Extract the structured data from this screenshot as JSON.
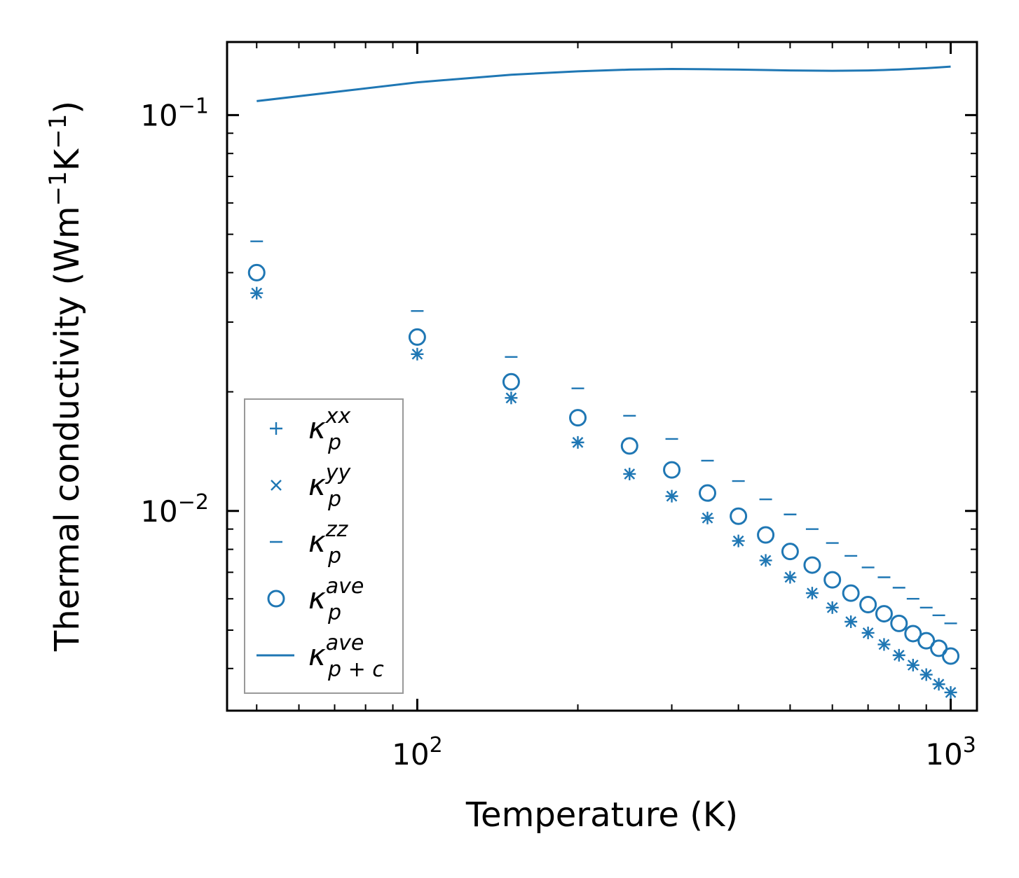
{
  "chart_data": {
    "type": "scatter",
    "xscale": "log",
    "yscale": "log",
    "xlabel": "Temperature (K)",
    "ylabel": "Thermal conductivity (Wm",
    "ylabel_sup1": "−1",
    "ylabel_mid": "K",
    "ylabel_sup2": "−1",
    "ylabel_end": ")",
    "xlim": [
      44,
      1120
    ],
    "ylim": [
      0.00313,
      0.153
    ],
    "x_ticks": [
      {
        "base": "10",
        "exp": "2",
        "value": 100
      },
      {
        "base": "10",
        "exp": "3",
        "value": 1000
      }
    ],
    "y_ticks": [
      {
        "base": "10",
        "exp": "−1",
        "value": 0.1
      },
      {
        "base": "10",
        "exp": "−2",
        "value": 0.01
      }
    ],
    "color": "#1f77b4",
    "x": [
      50,
      100,
      150,
      200,
      250,
      300,
      350,
      400,
      450,
      500,
      550,
      600,
      650,
      700,
      750,
      800,
      850,
      900,
      950,
      1000
    ],
    "series": [
      {
        "name": "kappa_p_xx",
        "marker": "plus",
        "values": [
          0.0355,
          0.0249,
          0.0193,
          0.0149,
          0.0124,
          0.0109,
          0.0096,
          0.0084,
          0.0075,
          0.0068,
          0.0062,
          0.0057,
          0.00525,
          0.00492,
          0.0046,
          0.00432,
          0.00408,
          0.00386,
          0.00365,
          0.00348
        ]
      },
      {
        "name": "kappa_p_yy",
        "marker": "x",
        "values": [
          0.0355,
          0.0249,
          0.0193,
          0.0149,
          0.0124,
          0.0109,
          0.0096,
          0.0084,
          0.0075,
          0.0068,
          0.0062,
          0.0057,
          0.00525,
          0.00492,
          0.0046,
          0.00432,
          0.00408,
          0.00386,
          0.00365,
          0.00348
        ]
      },
      {
        "name": "kappa_p_zz",
        "marker": "hline",
        "values": [
          0.048,
          0.032,
          0.0245,
          0.0204,
          0.0174,
          0.0152,
          0.0134,
          0.0119,
          0.0107,
          0.0098,
          0.009,
          0.0083,
          0.0077,
          0.0072,
          0.0068,
          0.0064,
          0.006,
          0.0057,
          0.00545,
          0.0052
        ]
      },
      {
        "name": "kappa_p_ave",
        "marker": "circle",
        "values": [
          0.04,
          0.0275,
          0.0212,
          0.0172,
          0.0146,
          0.0127,
          0.0111,
          0.0097,
          0.0087,
          0.0079,
          0.0073,
          0.0067,
          0.0062,
          0.0058,
          0.0055,
          0.0052,
          0.0049,
          0.0047,
          0.0045,
          0.0043
        ]
      },
      {
        "name": "kappa_p+c_ave",
        "marker": "line",
        "values": [
          0.1085,
          0.121,
          0.1265,
          0.129,
          0.1303,
          0.1308,
          0.1306,
          0.1303,
          0.13,
          0.1297,
          0.1295,
          0.1294,
          0.1295,
          0.1297,
          0.13,
          0.1304,
          0.1309,
          0.1314,
          0.132,
          0.1326
        ]
      }
    ],
    "legend": {
      "location": "lower-left",
      "entries": [
        {
          "marker": "plus",
          "base": "κ",
          "sub": "p",
          "sup": "xx"
        },
        {
          "marker": "x",
          "base": "κ",
          "sub": "p",
          "sup": "yy"
        },
        {
          "marker": "hline",
          "base": "κ",
          "sub": "p",
          "sup": "zz"
        },
        {
          "marker": "circle",
          "base": "κ",
          "sub": "p",
          "sup": "ave"
        },
        {
          "marker": "line",
          "base": "κ",
          "sub": "p + c",
          "sup": "ave"
        }
      ]
    }
  }
}
